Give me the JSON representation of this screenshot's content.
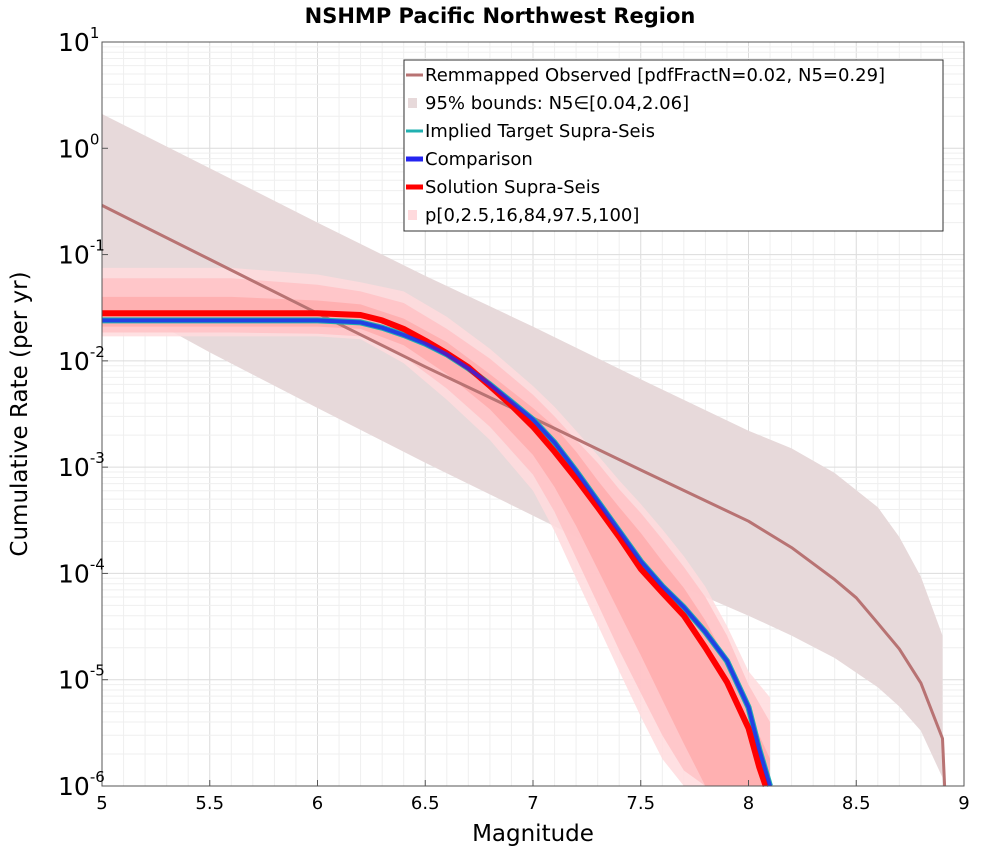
{
  "chart_data": {
    "type": "line",
    "title": "NSHMP Pacific Northwest Region",
    "xlabel": "Magnitude",
    "ylabel": "Cumulative Rate (per yr)",
    "xlim": [
      5,
      9
    ],
    "ylim": [
      1e-06,
      10
    ],
    "y_scale": "log",
    "grid": true,
    "legend_position": "top-right",
    "x_ticks": [
      "5",
      "5.5",
      "6",
      "6.5",
      "7",
      "7.5",
      "8",
      "8.5",
      "9"
    ],
    "y_tick_exponents": [
      "1",
      "0",
      "-1",
      "-2",
      "-3",
      "-4",
      "-5",
      "-6"
    ],
    "legend": [
      "Remmapped Observed [pdfFractN=0.02, N5=0.29]",
      "95% bounds: N5∈[0.04,2.06]",
      "Implied Target Supra-Seis",
      "Comparison",
      "Solution Supra-Seis",
      "p[0,2.5,16,84,97.5,100]"
    ],
    "colors": {
      "observed": "#b87373",
      "observed_band": "#e7d9da",
      "implied_target": "#20b0b0",
      "comparison": "#2424f0",
      "solution": "#ff0000",
      "outer_band": "#ffdadd",
      "mid_band": "#ffc0c4",
      "inner_band": "#ffabad"
    },
    "bands": {
      "observed_95": {
        "x": [
          5.0,
          5.5,
          6.0,
          6.5,
          7.0,
          7.5,
          8.0,
          8.2,
          8.4,
          8.6,
          8.7,
          8.8,
          8.9
        ],
        "lower": [
          0.043,
          0.012,
          0.0036,
          0.0011,
          0.00035,
          0.00011,
          4e-05,
          2.6e-05,
          1.6e-05,
          8.5e-06,
          5.6e-06,
          3.3e-06,
          1.2e-06
        ],
        "upper": [
          2.1,
          0.65,
          0.2,
          0.063,
          0.021,
          0.0067,
          0.0022,
          0.0015,
          0.00088,
          0.00042,
          0.00022,
          9.3e-05,
          2.6e-05
        ]
      },
      "p0_100": {
        "x": [
          5.0,
          5.6,
          6.0,
          6.2,
          6.4,
          6.6,
          6.8,
          7.0,
          7.1,
          7.2,
          7.3,
          7.4,
          7.5,
          7.6,
          7.7,
          7.8,
          7.9,
          8.0,
          8.1
        ],
        "lower": [
          0.017,
          0.017,
          0.017,
          0.016,
          0.0095,
          0.0043,
          0.0018,
          0.0006,
          0.00025,
          9e-05,
          3.3e-05,
          1.2e-05,
          4.5e-06,
          1.8e-06,
          1e-06,
          1e-06,
          1e-06,
          1e-06,
          1e-06
        ],
        "upper": [
          0.075,
          0.075,
          0.065,
          0.055,
          0.045,
          0.026,
          0.013,
          0.0058,
          0.0037,
          0.0022,
          0.0013,
          0.00075,
          0.00045,
          0.00026,
          0.000145,
          7.5e-05,
          3.2e-05,
          1.2e-05,
          6.8e-06
        ]
      },
      "p2_97": {
        "x": [
          5.0,
          5.6,
          6.0,
          6.2,
          6.4,
          6.6,
          6.8,
          7.0,
          7.1,
          7.2,
          7.3,
          7.4,
          7.5,
          7.6,
          7.7,
          7.8,
          7.9,
          8.0,
          8.1
        ],
        "lower": [
          0.0185,
          0.0185,
          0.018,
          0.017,
          0.011,
          0.0055,
          0.0024,
          0.00085,
          0.00038,
          0.00014,
          5.2e-05,
          1.9e-05,
          7.5e-06,
          3e-06,
          1.4e-06,
          1e-06,
          1e-06,
          1e-06,
          1e-06
        ],
        "upper": [
          0.06,
          0.06,
          0.052,
          0.045,
          0.035,
          0.02,
          0.0105,
          0.0048,
          0.003,
          0.0018,
          0.0011,
          0.00062,
          0.00037,
          0.00021,
          0.000115,
          6e-05,
          2.6e-05,
          9e-06,
          4e-06
        ]
      },
      "p16_84": {
        "x": [
          5.0,
          5.6,
          6.0,
          6.2,
          6.4,
          6.6,
          6.8,
          7.0,
          7.1,
          7.2,
          7.3,
          7.4,
          7.5,
          7.6,
          7.7,
          7.8,
          7.9,
          8.0,
          8.1
        ],
        "lower": [
          0.021,
          0.021,
          0.021,
          0.02,
          0.014,
          0.0075,
          0.0035,
          0.0013,
          0.00065,
          0.00028,
          0.00011,
          4.3e-05,
          1.7e-05,
          6.5e-06,
          2.5e-06,
          1e-06,
          1e-06,
          1e-06,
          1e-06
        ],
        "upper": [
          0.04,
          0.04,
          0.037,
          0.034,
          0.025,
          0.015,
          0.0075,
          0.0036,
          0.0024,
          0.0014,
          0.00075,
          0.00042,
          0.00024,
          0.00013,
          7.3e-05,
          3.6e-05,
          1.5e-05,
          5e-06,
          1.8e-06
        ]
      }
    },
    "series": [
      {
        "name": "Remmapped Observed [pdfFractN=0.02, N5=0.29]",
        "x": [
          5.0,
          5.5,
          6.0,
          6.5,
          7.0,
          7.5,
          8.0,
          8.2,
          8.4,
          8.5,
          8.6,
          8.7,
          8.8,
          8.9,
          8.91
        ],
        "y": [
          0.29,
          0.09,
          0.028,
          0.0088,
          0.0029,
          0.00094,
          0.00031,
          0.000175,
          8.75e-05,
          5.9e-05,
          3.4e-05,
          1.95e-05,
          9.3e-06,
          2.8e-06,
          1e-06
        ]
      },
      {
        "name": "Implied Target Supra-Seis",
        "x": [
          5.0,
          5.6,
          6.0,
          6.2,
          6.3,
          6.4,
          6.5,
          6.6,
          6.7,
          6.8,
          6.9,
          7.0,
          7.1,
          7.2,
          7.3,
          7.4,
          7.5,
          7.6,
          7.7,
          7.8,
          7.9,
          8.0,
          8.05,
          8.1
        ],
        "y": [
          0.024,
          0.024,
          0.024,
          0.023,
          0.0205,
          0.0175,
          0.0145,
          0.0115,
          0.0085,
          0.006,
          0.0041,
          0.0028,
          0.0017,
          0.00092,
          0.00048,
          0.00025,
          0.00013,
          7.6e-05,
          4.8e-05,
          2.8e-05,
          1.5e-05,
          5.5e-06,
          2.2e-06,
          1e-06
        ]
      },
      {
        "name": "Comparison",
        "x": [
          5.0,
          5.6,
          6.0,
          6.2,
          6.3,
          6.4,
          6.5,
          6.6,
          6.7,
          6.8,
          6.9,
          7.0,
          7.1,
          7.2,
          7.3,
          7.4,
          7.5,
          7.6,
          7.7,
          7.8,
          7.9,
          8.0,
          8.05,
          8.1
        ],
        "y": [
          0.024,
          0.024,
          0.024,
          0.023,
          0.0205,
          0.0175,
          0.0145,
          0.0115,
          0.0085,
          0.006,
          0.0041,
          0.0028,
          0.0017,
          0.00092,
          0.00048,
          0.00025,
          0.00013,
          7.6e-05,
          4.8e-05,
          2.8e-05,
          1.5e-05,
          5.5e-06,
          2.2e-06,
          1e-06
        ]
      },
      {
        "name": "Solution Supra-Seis",
        "x": [
          5.0,
          5.6,
          6.0,
          6.2,
          6.3,
          6.4,
          6.5,
          6.6,
          6.7,
          6.8,
          6.9,
          7.0,
          7.1,
          7.2,
          7.3,
          7.4,
          7.5,
          7.6,
          7.7,
          7.8,
          7.9,
          8.0,
          8.05,
          8.08
        ],
        "y": [
          0.028,
          0.028,
          0.028,
          0.027,
          0.024,
          0.02,
          0.0155,
          0.0118,
          0.0087,
          0.0058,
          0.0038,
          0.0024,
          0.0014,
          0.00078,
          0.00042,
          0.00022,
          0.00011,
          6.6e-05,
          4e-05,
          2e-05,
          9.5e-06,
          3.5e-06,
          1.5e-06,
          1e-06
        ]
      }
    ]
  }
}
